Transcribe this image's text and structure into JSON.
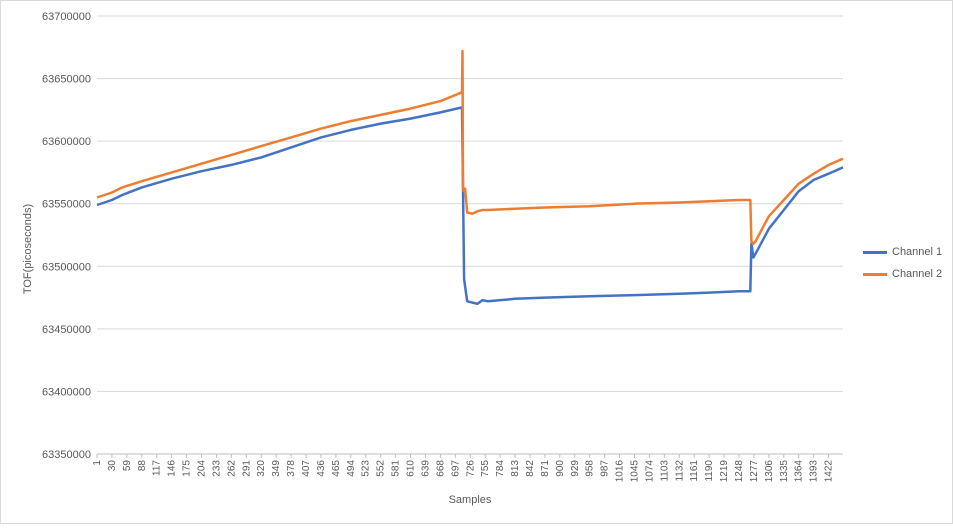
{
  "chart_data": {
    "type": "line",
    "title": "",
    "xlabel": "Samples",
    "ylabel": "TOF(picoseconds)",
    "ylim": [
      63350000,
      63700000
    ],
    "y_ticks": [
      63350000,
      63400000,
      63450000,
      63500000,
      63550000,
      63600000,
      63650000,
      63700000
    ],
    "x_range": [
      1,
      1450
    ],
    "x_tick_labels": [
      1,
      30,
      59,
      88,
      117,
      146,
      175,
      204,
      233,
      262,
      291,
      320,
      349,
      378,
      407,
      436,
      465,
      494,
      523,
      552,
      581,
      610,
      639,
      668,
      697,
      726,
      755,
      784,
      813,
      842,
      871,
      900,
      929,
      958,
      987,
      1016,
      1045,
      1074,
      1103,
      1132,
      1161,
      1190,
      1219,
      1248,
      1277,
      1306,
      1335,
      1364,
      1393,
      1422
    ],
    "grid": "horizontal",
    "legend_position": "right",
    "series": [
      {
        "name": "Channel 1",
        "color": "#4472C4",
        "x": [
          1,
          30,
          50,
          88,
          146,
          204,
          262,
          320,
          378,
          436,
          494,
          552,
          610,
          668,
          710,
          712,
          714,
          716,
          720,
          730,
          740,
          750,
          760,
          813,
          871,
          958,
          1045,
          1132,
          1190,
          1248,
          1270,
          1272,
          1276,
          1280,
          1306,
          1335,
          1364,
          1393,
          1422,
          1450
        ],
        "y": [
          63549000,
          63553000,
          63557000,
          63563000,
          63570000,
          63576000,
          63581000,
          63587000,
          63595000,
          63603000,
          63609000,
          63614000,
          63618000,
          63623000,
          63627000,
          63563000,
          63490000,
          63484000,
          63472000,
          63471000,
          63470000,
          63473000,
          63472000,
          63474000,
          63475000,
          63476000,
          63477000,
          63478000,
          63479000,
          63480000,
          63480000,
          63518000,
          63507000,
          63510000,
          63530000,
          63545000,
          63560000,
          63569000,
          63574000,
          63579000
        ]
      },
      {
        "name": "Channel 2",
        "color": "#ED7D31",
        "x": [
          1,
          30,
          50,
          88,
          146,
          204,
          262,
          320,
          378,
          436,
          494,
          552,
          610,
          668,
          710,
          711,
          712,
          713,
          716,
          720,
          730,
          740,
          750,
          760,
          813,
          871,
          958,
          1045,
          1132,
          1190,
          1248,
          1270,
          1272,
          1276,
          1280,
          1306,
          1335,
          1364,
          1393,
          1422,
          1450
        ],
        "y": [
          63555000,
          63559000,
          63563000,
          63568000,
          63575000,
          63582000,
          63589000,
          63596000,
          63603000,
          63610000,
          63616000,
          63621000,
          63626000,
          63632000,
          63639000,
          63672000,
          63563000,
          63560000,
          63562000,
          63543000,
          63542000,
          63544000,
          63545000,
          63545000,
          63546000,
          63547000,
          63548000,
          63550000,
          63551000,
          63552000,
          63553000,
          63553000,
          63520000,
          63518000,
          63520000,
          63540000,
          63553000,
          63566000,
          63574000,
          63581000,
          63586000
        ]
      }
    ]
  }
}
